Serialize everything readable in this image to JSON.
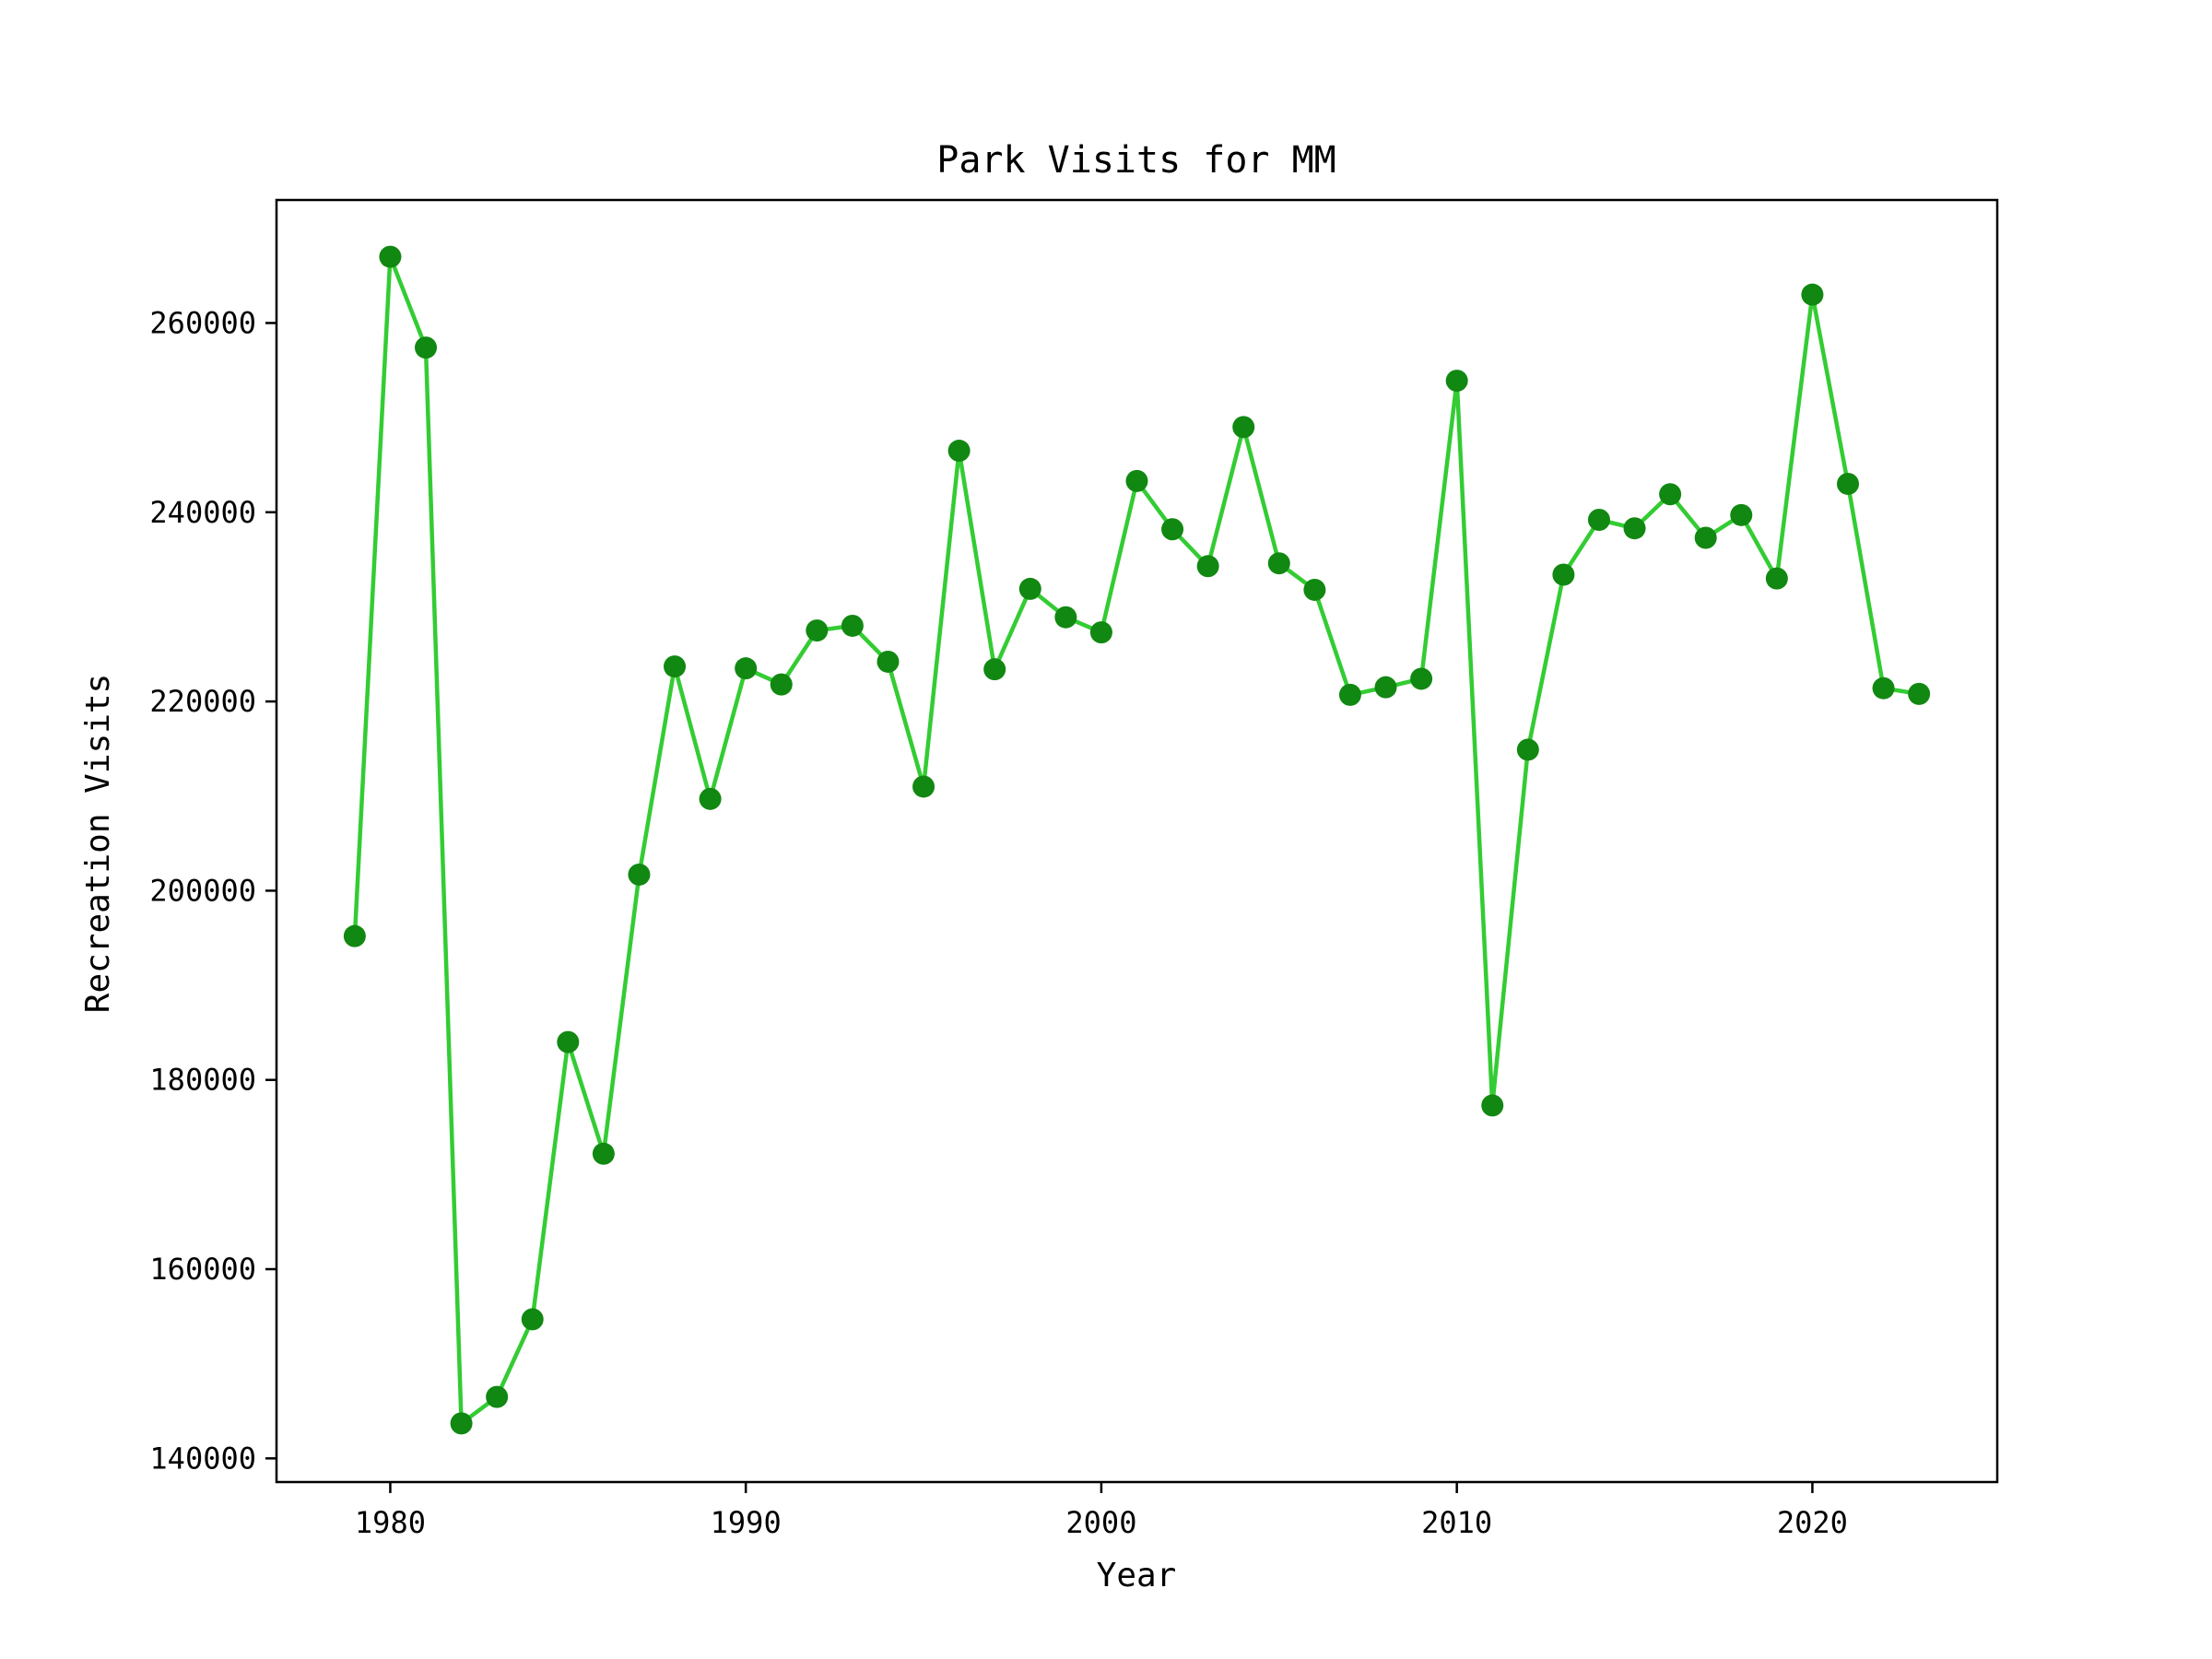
{
  "chart_data": {
    "type": "line",
    "title": "Park Visits for MM",
    "xlabel": "Year",
    "ylabel": "Recreation Visits",
    "xlim": [
      1976.8,
      2025.2
    ],
    "ylim": [
      137500,
      273000
    ],
    "x_ticks": [
      1980,
      1990,
      2000,
      2010,
      2020
    ],
    "y_ticks": [
      140000,
      160000,
      180000,
      200000,
      220000,
      240000,
      260000
    ],
    "grid": false,
    "legend": "none",
    "colors": {
      "line": "#33cc33",
      "marker": "#118811"
    },
    "series": [
      {
        "x": [
          1979,
          1980,
          1981,
          1982,
          1983,
          1984,
          1985,
          1986,
          1987,
          1988,
          1989,
          1990,
          1991,
          1992,
          1993,
          1994,
          1995,
          1996,
          1997,
          1998,
          1999,
          2000,
          2001,
          2002,
          2003,
          2004,
          2005,
          2006,
          2007,
          2008,
          2009,
          2010,
          2011,
          2012,
          2013,
          2014,
          2015,
          2016,
          2017,
          2018,
          2019,
          2020,
          2021,
          2022,
          2023
        ],
        "y": [
          195200,
          267000,
          257400,
          143700,
          146500,
          154700,
          184000,
          172200,
          201700,
          223700,
          209700,
          223500,
          221800,
          227500,
          228000,
          224200,
          211000,
          246500,
          223400,
          231900,
          228900,
          227300,
          243300,
          238200,
          234300,
          249000,
          234600,
          231800,
          220700,
          221500,
          222400,
          253900,
          177300,
          214900,
          233400,
          239200,
          238300,
          241900,
          237300,
          239700,
          233000,
          263000,
          243000,
          221400,
          220800
        ]
      }
    ]
  }
}
